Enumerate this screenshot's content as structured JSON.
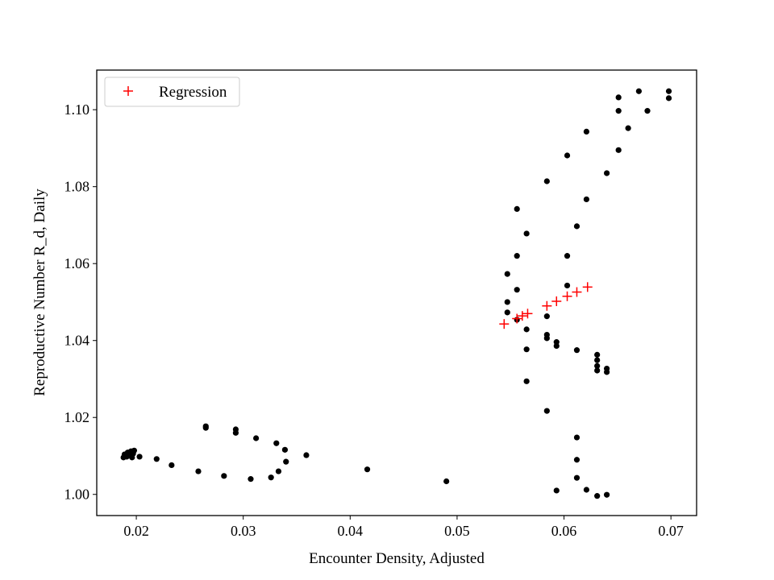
{
  "chart_data": {
    "type": "scatter",
    "title": "",
    "xlabel": "Encounter Density, Adjusted",
    "ylabel": "Reproductive Number R_d, Daily",
    "xlim": [
      0.0163,
      0.0724
    ],
    "ylim": [
      0.9945,
      1.1103
    ],
    "xticks": [
      0.02,
      0.03,
      0.04,
      0.05,
      0.06,
      0.07
    ],
    "xtick_labels": [
      "0.02",
      "0.03",
      "0.04",
      "0.05",
      "0.06",
      "0.07"
    ],
    "yticks": [
      1.0,
      1.02,
      1.04,
      1.06,
      1.08,
      1.1
    ],
    "ytick_labels": [
      "1.00",
      "1.02",
      "1.04",
      "1.06",
      "1.08",
      "1.10"
    ],
    "grid": false,
    "legend_position": "upper-left",
    "series": [
      {
        "name": "",
        "marker": "dot",
        "color": "#000000",
        "points": [
          [
            0.0188,
            1.0096
          ],
          [
            0.0189,
            1.0104
          ],
          [
            0.0191,
            1.0098
          ],
          [
            0.0192,
            1.0109
          ],
          [
            0.0194,
            1.0102
          ],
          [
            0.0195,
            1.0112
          ],
          [
            0.0197,
            1.0106
          ],
          [
            0.0198,
            1.0114
          ],
          [
            0.0196,
            1.0096
          ],
          [
            0.0203,
            1.0098
          ],
          [
            0.0219,
            1.0092
          ],
          [
            0.0233,
            1.0076
          ],
          [
            0.0258,
            1.006
          ],
          [
            0.0265,
            1.0177
          ],
          [
            0.0265,
            1.0173
          ],
          [
            0.0282,
            1.0048
          ],
          [
            0.0293,
            1.0169
          ],
          [
            0.0293,
            1.016
          ],
          [
            0.0307,
            1.004
          ],
          [
            0.0312,
            1.0146
          ],
          [
            0.0326,
            1.0044
          ],
          [
            0.0331,
            1.0133
          ],
          [
            0.0333,
            1.006
          ],
          [
            0.0339,
            1.0116
          ],
          [
            0.034,
            1.0085
          ],
          [
            0.0359,
            1.0102
          ],
          [
            0.0416,
            1.0065
          ],
          [
            0.049,
            1.0034
          ],
          [
            0.0547,
            1.0573
          ],
          [
            0.0547,
            1.05
          ],
          [
            0.0547,
            1.0473
          ],
          [
            0.0556,
            1.0742
          ],
          [
            0.0556,
            1.062
          ],
          [
            0.0556,
            1.0532
          ],
          [
            0.0556,
            1.0454
          ],
          [
            0.0565,
            1.0678
          ],
          [
            0.0565,
            1.0429
          ],
          [
            0.0565,
            1.0377
          ],
          [
            0.0565,
            1.0294
          ],
          [
            0.0584,
            1.0814
          ],
          [
            0.0584,
            1.0463
          ],
          [
            0.0584,
            1.0415
          ],
          [
            0.0584,
            1.0406
          ],
          [
            0.0584,
            1.0217
          ],
          [
            0.0593,
            1.0396
          ],
          [
            0.0593,
            1.0386
          ],
          [
            0.0593,
            1.001
          ],
          [
            0.0603,
            1.0881
          ],
          [
            0.0603,
            1.062
          ],
          [
            0.0603,
            1.0543
          ],
          [
            0.0612,
            1.0697
          ],
          [
            0.0612,
            1.0375
          ],
          [
            0.0612,
            1.0148
          ],
          [
            0.0612,
            1.009
          ],
          [
            0.0612,
            1.0043
          ],
          [
            0.0621,
            1.0943
          ],
          [
            0.0621,
            1.0767
          ],
          [
            0.0621,
            1.0012
          ],
          [
            0.0631,
            1.0363
          ],
          [
            0.0631,
            1.0349
          ],
          [
            0.0631,
            1.0334
          ],
          [
            0.0631,
            1.0322
          ],
          [
            0.0631,
            0.9996
          ],
          [
            0.064,
            1.0835
          ],
          [
            0.064,
            1.0327
          ],
          [
            0.064,
            1.0318
          ],
          [
            0.064,
            0.9999
          ],
          [
            0.0651,
            1.1032
          ],
          [
            0.0651,
            1.0997
          ],
          [
            0.0651,
            1.0895
          ],
          [
            0.066,
            1.0952
          ],
          [
            0.067,
            1.1048
          ],
          [
            0.0678,
            1.0997
          ],
          [
            0.0698,
            1.1048
          ],
          [
            0.0698,
            1.103
          ]
        ]
      },
      {
        "name": "Regression",
        "marker": "plus",
        "color": "#ff0000",
        "points": [
          [
            0.0544,
            1.0443
          ],
          [
            0.0556,
            1.0457
          ],
          [
            0.0561,
            1.0464
          ],
          [
            0.0566,
            1.047
          ],
          [
            0.0584,
            1.049
          ],
          [
            0.0593,
            1.0502
          ],
          [
            0.0603,
            1.0515
          ],
          [
            0.0612,
            1.0526
          ],
          [
            0.0622,
            1.0539
          ]
        ]
      }
    ]
  }
}
